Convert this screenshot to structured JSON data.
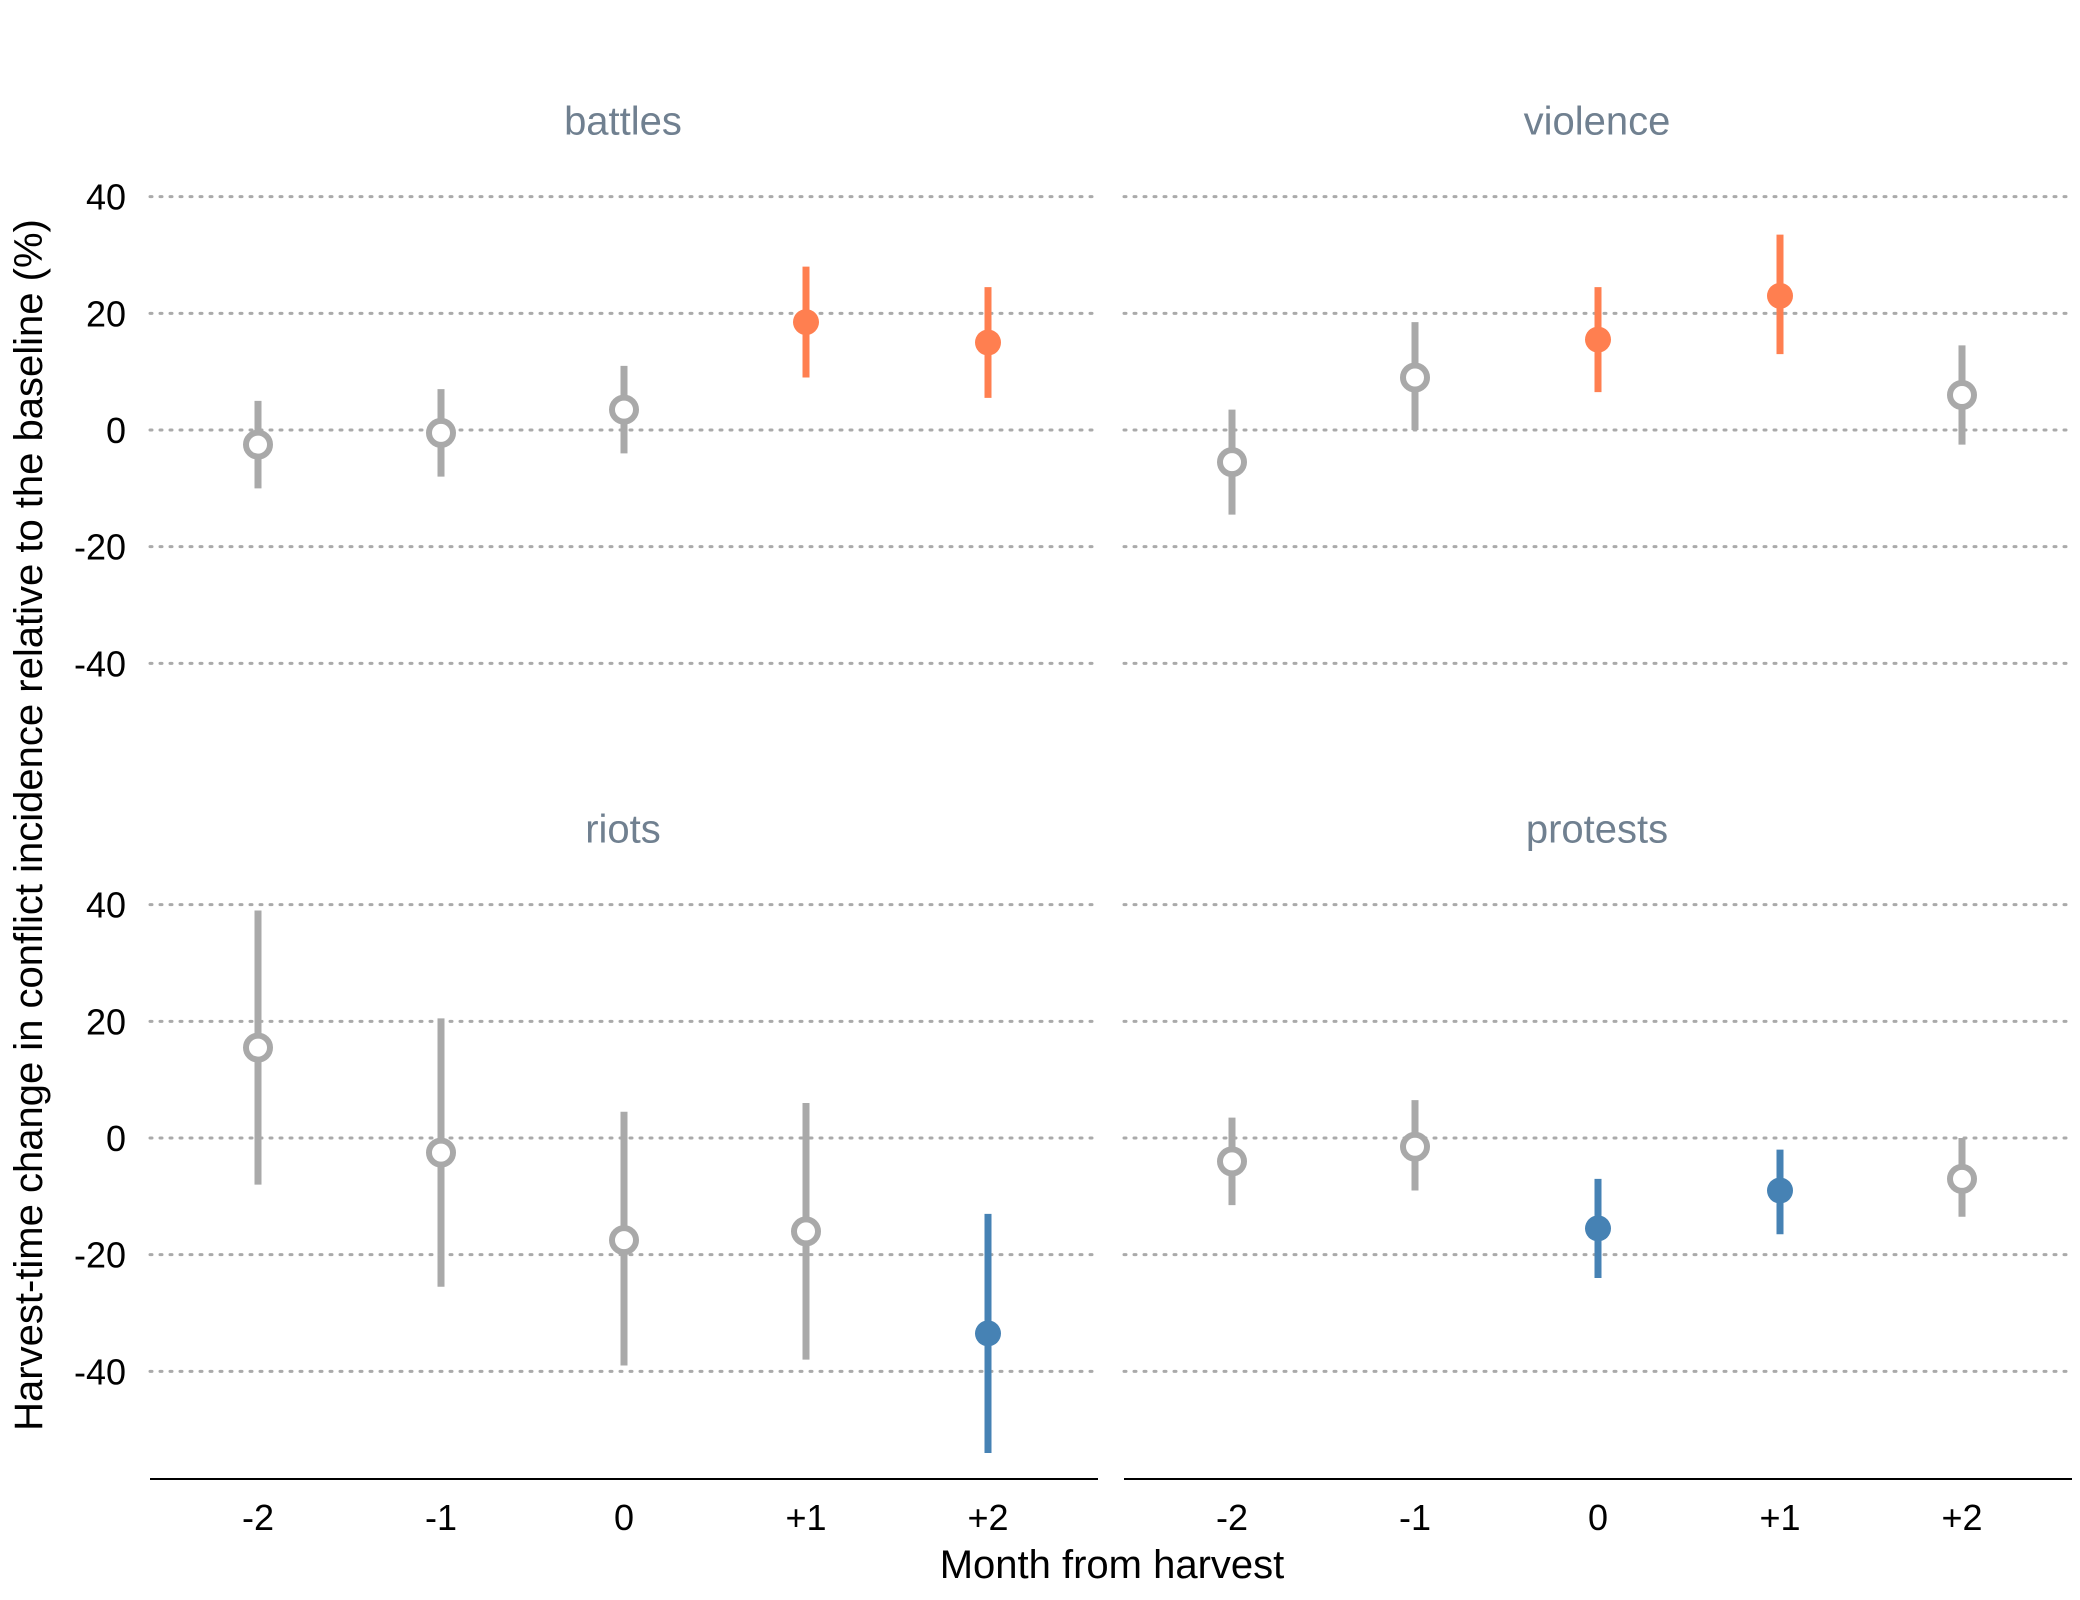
{
  "chart_data": {
    "type": "scatter",
    "subtype": "point-range faceted",
    "xlabel": "Month from harvest",
    "ylabel": "Harvest-time change in conflict incidence relative to the baseline (%)",
    "categories": [
      "-2",
      "-1",
      "0",
      "+1",
      "+2"
    ],
    "yticks": [
      40,
      20,
      0,
      -20,
      -40
    ],
    "ytick_labels": [
      "40",
      "20",
      "0",
      "-20",
      "-40"
    ],
    "grid": "horizontal dotted",
    "colors": {
      "positive": "#FF7F50",
      "negative": "#4682B4",
      "nonsignificant": "#A9A9A9",
      "title": "#708090"
    },
    "panels": [
      {
        "title": "battles",
        "ylim": [
          -40,
          40
        ],
        "points": [
          {
            "x": "-2",
            "estimate": -2.5,
            "lower": -10,
            "upper": 5,
            "significance": "nonsignificant"
          },
          {
            "x": "-1",
            "estimate": -0.5,
            "lower": -8,
            "upper": 7,
            "significance": "nonsignificant"
          },
          {
            "x": "0",
            "estimate": 3.5,
            "lower": -4,
            "upper": 11,
            "significance": "nonsignificant"
          },
          {
            "x": "+1",
            "estimate": 18.5,
            "lower": 9,
            "upper": 28,
            "significance": "positive"
          },
          {
            "x": "+2",
            "estimate": 15,
            "lower": 5.5,
            "upper": 24.5,
            "significance": "positive"
          }
        ]
      },
      {
        "title": "violence",
        "ylim": [
          -40,
          40
        ],
        "points": [
          {
            "x": "-2",
            "estimate": -5.5,
            "lower": -14.5,
            "upper": 3.5,
            "significance": "nonsignificant"
          },
          {
            "x": "-1",
            "estimate": 9,
            "lower": 0,
            "upper": 18.5,
            "significance": "nonsignificant"
          },
          {
            "x": "0",
            "estimate": 15.5,
            "lower": 6.5,
            "upper": 24.5,
            "significance": "positive"
          },
          {
            "x": "+1",
            "estimate": 23,
            "lower": 13,
            "upper": 33.5,
            "significance": "positive"
          },
          {
            "x": "+2",
            "estimate": 6,
            "lower": -2.5,
            "upper": 14.5,
            "significance": "nonsignificant"
          }
        ]
      },
      {
        "title": "riots",
        "ylim": [
          -58,
          40
        ],
        "points": [
          {
            "x": "-2",
            "estimate": 15.5,
            "lower": -8,
            "upper": 39,
            "significance": "nonsignificant"
          },
          {
            "x": "-1",
            "estimate": -2.5,
            "lower": -25.5,
            "upper": 20.5,
            "significance": "nonsignificant"
          },
          {
            "x": "0",
            "estimate": -17.5,
            "lower": -39,
            "upper": 4.5,
            "significance": "nonsignificant"
          },
          {
            "x": "+1",
            "estimate": -16,
            "lower": -38,
            "upper": 6,
            "significance": "nonsignificant"
          },
          {
            "x": "+2",
            "estimate": -33.5,
            "lower": -54,
            "upper": -13,
            "significance": "negative"
          }
        ]
      },
      {
        "title": "protests",
        "ylim": [
          -58,
          40
        ],
        "points": [
          {
            "x": "-2",
            "estimate": -4,
            "lower": -11.5,
            "upper": 3.5,
            "significance": "nonsignificant"
          },
          {
            "x": "-1",
            "estimate": -1.5,
            "lower": -9,
            "upper": 6.5,
            "significance": "nonsignificant"
          },
          {
            "x": "0",
            "estimate": -15.5,
            "lower": -24,
            "upper": -7,
            "significance": "negative"
          },
          {
            "x": "+1",
            "estimate": -9,
            "lower": -16.5,
            "upper": -2,
            "significance": "negative"
          },
          {
            "x": "+2",
            "estimate": -7,
            "lower": -13.5,
            "upper": 0,
            "significance": "nonsignificant"
          }
        ]
      }
    ]
  }
}
